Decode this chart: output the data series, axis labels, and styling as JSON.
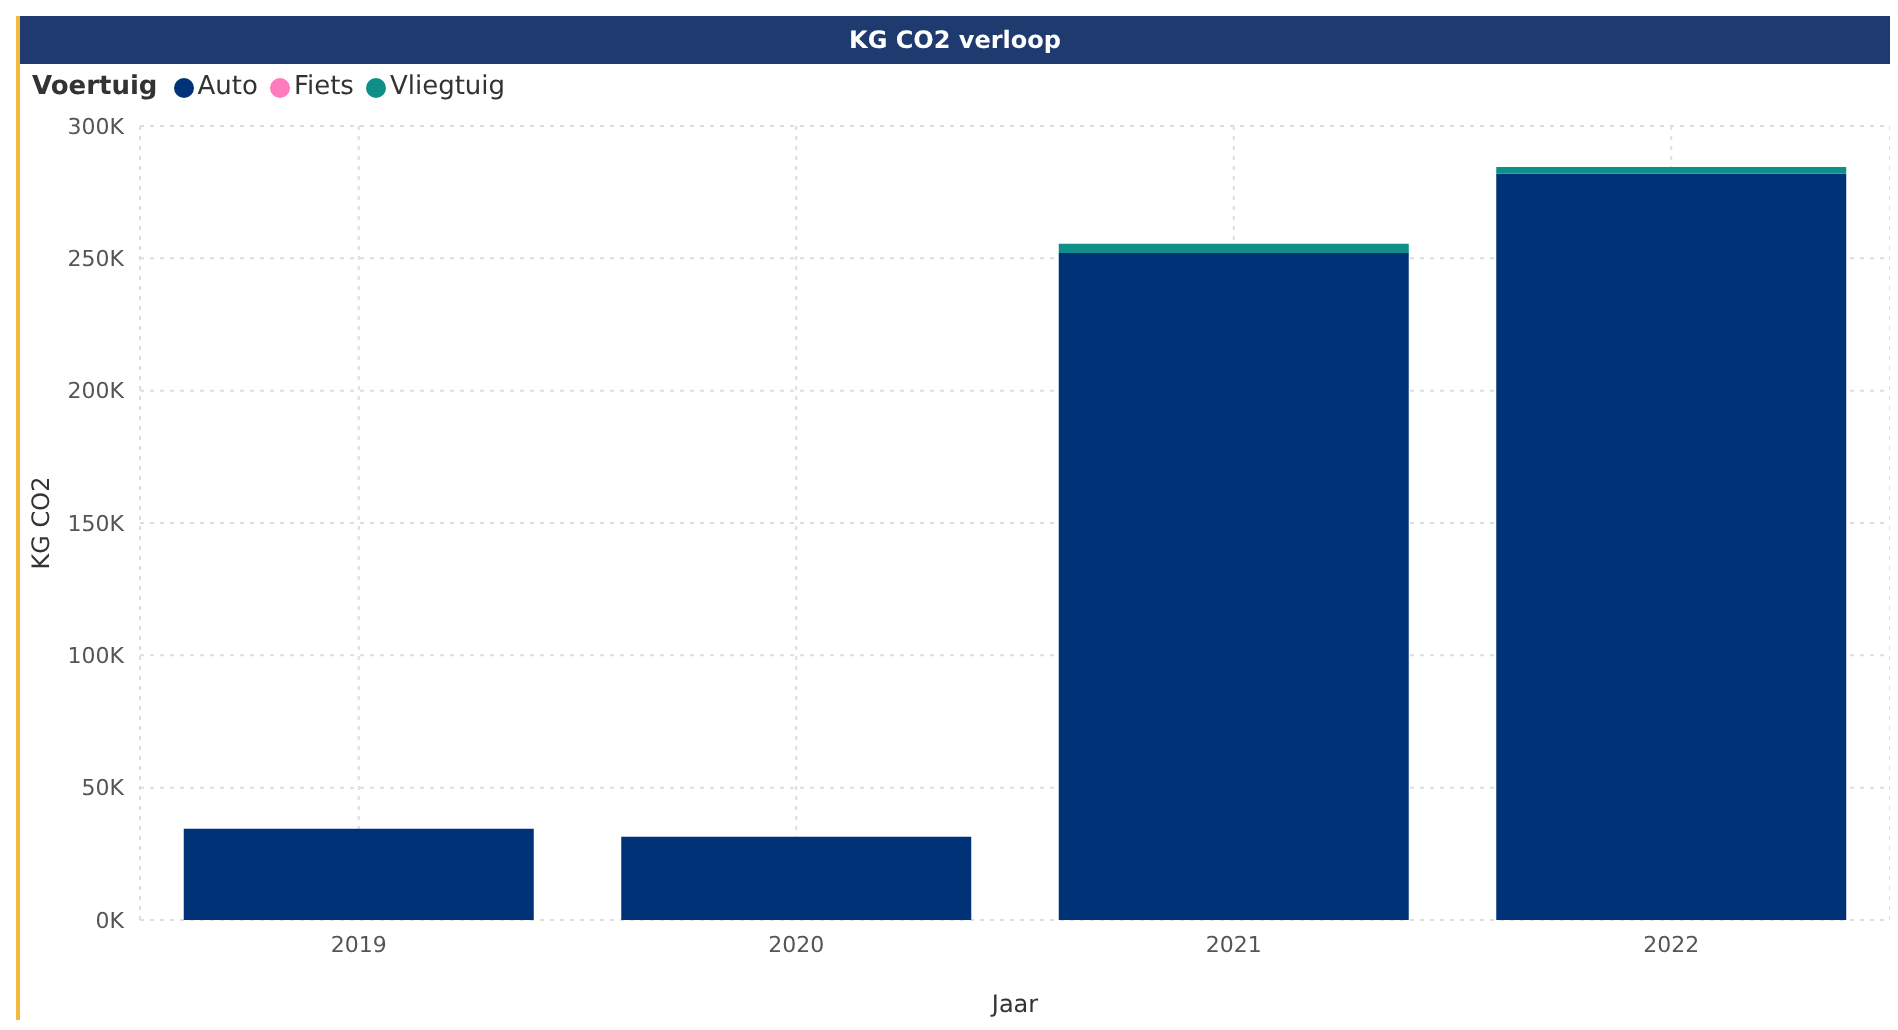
{
  "chart_data": {
    "type": "bar",
    "title": "KG CO2 verloop",
    "xlabel": "Jaar",
    "ylabel": "KG CO2",
    "legend_title": "Voertuig",
    "categories": [
      "2019",
      "2020",
      "2021",
      "2022"
    ],
    "stacked": true,
    "series": [
      {
        "name": "Auto",
        "color": "#003278",
        "values": [
          34500,
          31500,
          252000,
          282000
        ]
      },
      {
        "name": "Fiets",
        "color": "#ff7bbd",
        "values": [
          0,
          0,
          0,
          0
        ]
      },
      {
        "name": "Vliegtuig",
        "color": "#0f8f8a",
        "values": [
          0,
          0,
          3500,
          2500
        ]
      }
    ],
    "ylim": [
      0,
      300000
    ],
    "yticks": [
      {
        "value": 0,
        "label": "0K"
      },
      {
        "value": 50000,
        "label": "50K"
      },
      {
        "value": 100000,
        "label": "100K"
      },
      {
        "value": 150000,
        "label": "150K"
      },
      {
        "value": 200000,
        "label": "200K"
      },
      {
        "value": 250000,
        "label": "250K"
      },
      {
        "value": 300000,
        "label": "300K"
      }
    ],
    "grid": true,
    "legend": "top left"
  }
}
